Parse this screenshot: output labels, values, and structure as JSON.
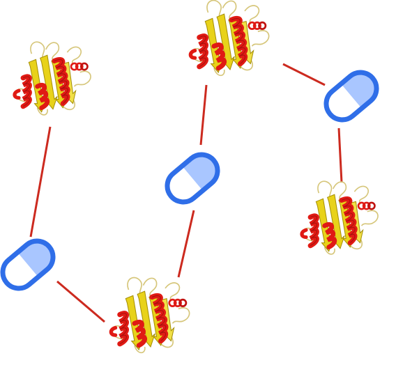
{
  "diagram": {
    "description_items": {
      "proteins": [
        "protein-1",
        "protein-2",
        "protein-3",
        "protein-4"
      ],
      "capsules": [
        "capsule-1",
        "capsule-2",
        "capsule-3"
      ]
    },
    "colors": {
      "background": "#ffffff",
      "link": "#cc2a1f",
      "capsule_outline": "#2f6ee8",
      "capsule_fill_light": "#a9c6ff",
      "capsule_fill_white": "#ffffff",
      "helix": "#e01a14",
      "helix_dark": "#8e0d0a",
      "strand": "#e8d21a",
      "strand_dark": "#a58f08",
      "coil": "#e7d88f",
      "coil_dark": "#b8a45a"
    },
    "icons": {
      "protein": "protein-structure-icon",
      "capsule": "capsule-icon"
    }
  }
}
